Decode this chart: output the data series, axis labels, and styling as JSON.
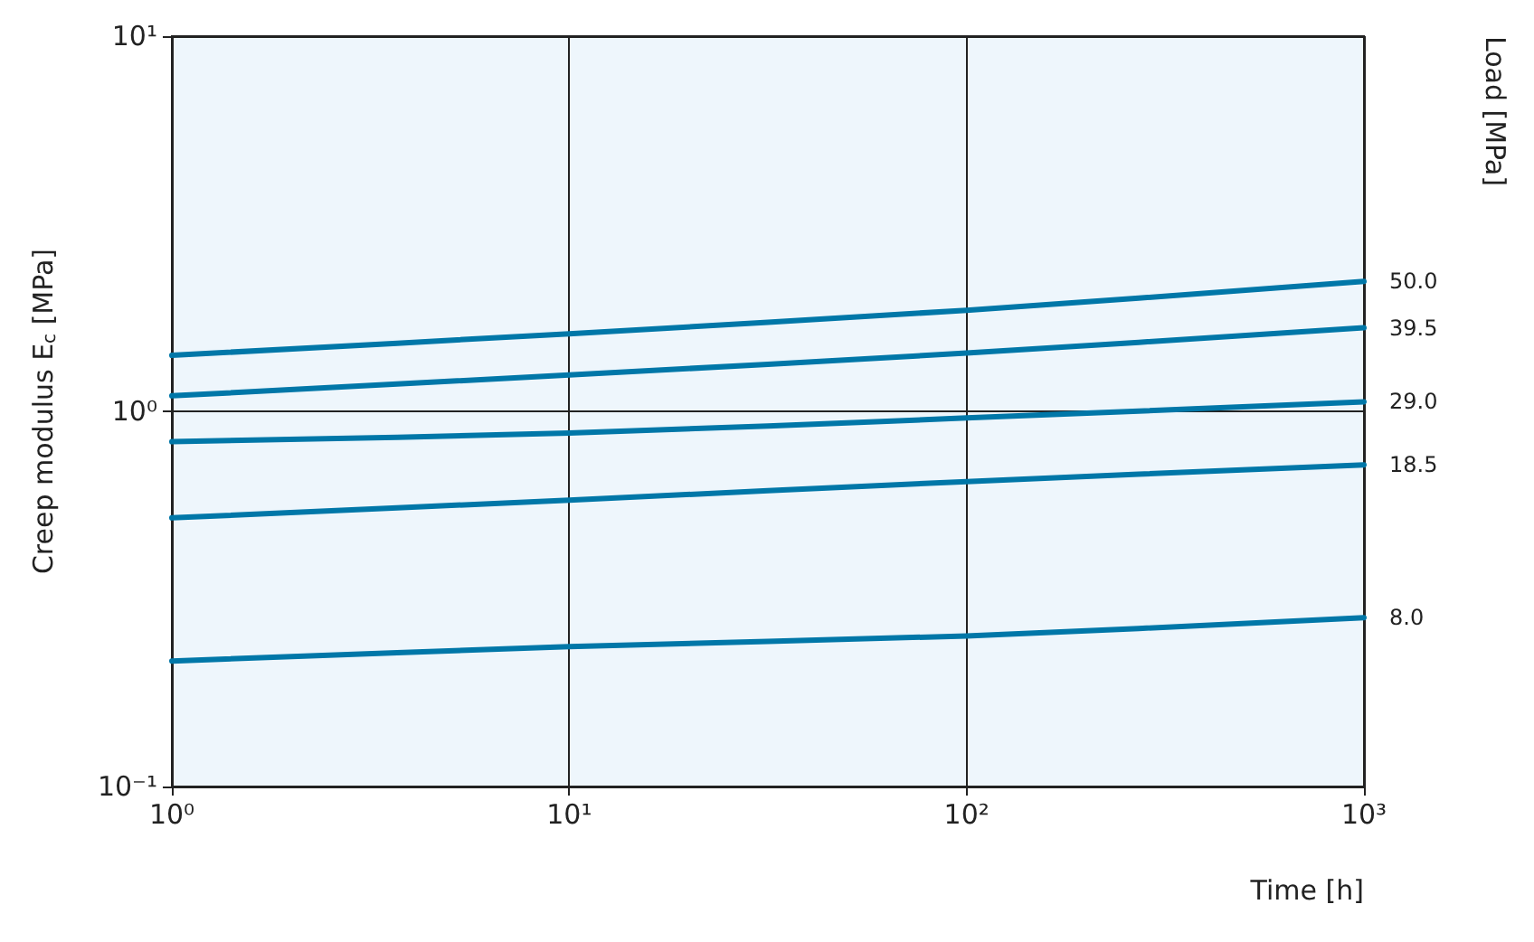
{
  "chart_data": {
    "type": "line",
    "xlabel": "Time [h]",
    "ylabel": "Creep modulus E$_{c}$ [MPa]",
    "legend_title": "Load [MPa]",
    "log": "xy",
    "grid": true,
    "marker": "none",
    "line_style": "solid",
    "x": [
      1,
      10,
      100,
      1000
    ],
    "xlim": [
      1,
      1000
    ],
    "ylim": [
      0.1,
      10
    ],
    "xticks": [
      {
        "value": 1,
        "label": "10⁰"
      },
      {
        "value": 10,
        "label": "10¹"
      },
      {
        "value": 100,
        "label": "10²"
      },
      {
        "value": 1000,
        "label": "10³"
      }
    ],
    "yticks": [
      {
        "value": 0.1,
        "label": "10⁻¹"
      },
      {
        "value": 1,
        "label": "10⁰"
      },
      {
        "value": 10,
        "label": "10¹"
      }
    ],
    "series": [
      {
        "name": "50.0",
        "color": "#0077a8",
        "values": [
          1.41,
          1.61,
          1.86,
          2.22
        ]
      },
      {
        "name": "39.5",
        "color": "#0077a8",
        "values": [
          1.1,
          1.25,
          1.43,
          1.67
        ]
      },
      {
        "name": "29.0",
        "color": "#0077a8",
        "values": [
          0.83,
          0.875,
          0.96,
          1.06
        ]
      },
      {
        "name": "18.5",
        "color": "#0077a8",
        "values": [
          0.52,
          0.58,
          0.65,
          0.72
        ]
      },
      {
        "name": "8.0",
        "color": "#0077a8",
        "values": [
          0.216,
          0.236,
          0.252,
          0.282
        ]
      }
    ]
  }
}
